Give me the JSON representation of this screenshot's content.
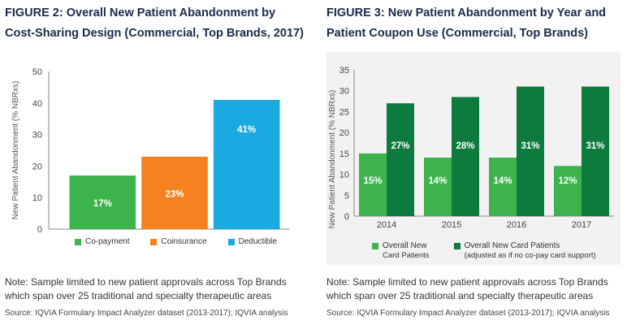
{
  "figures": [
    {
      "title": "FIGURE 2: Overall New Patient Abandonment by Cost-Sharing Design (Commercial, Top Brands, 2017)",
      "note": "Note: Sample limited to new patient approvals across Top Brands which span over 25 traditional and specialty therapeutic areas",
      "source": "Source: IQVIA Formulary Impact Analyzer dataset (2013-2017); IQVIA analysis"
    },
    {
      "title": "FIGURE 3: New Patient Abandonment by Year and Patient Coupon Use (Commercial, Top Brands)",
      "note": "Note: Sample limited to new patient approvals across Top Brands which span over 25 traditional and specialty therapeutic areas",
      "source": "Source: IQVIA Formulary Impact Analyzer dataset (2013-2017); IQVIA analysis"
    }
  ],
  "chart_data": [
    {
      "type": "bar",
      "title": "FIGURE 2: Overall New Patient Abandonment by Cost-Sharing Design (Commercial, Top Brands, 2017)",
      "ylabel": "New Patient Abandonment (% NBRxs)",
      "xlabel": "",
      "ylim": [
        0,
        50
      ],
      "yticks": [
        0,
        10,
        20,
        30,
        40,
        50
      ],
      "categories": [
        "Co-payment",
        "Coinsurance",
        "Deductible"
      ],
      "values": [
        17,
        23,
        41
      ],
      "data_labels": [
        "17%",
        "23%",
        "41%"
      ],
      "colors": [
        "#3cb44b",
        "#f5821f",
        "#1aa9e0"
      ],
      "legend": [
        "Co-payment",
        "Coinsurance",
        "Deductible"
      ],
      "legend_position": "bottom",
      "show_x_tick_labels": false,
      "grid": false
    },
    {
      "type": "bar",
      "title": "FIGURE 3: New Patient Abandonment by Year and Patient Coupon Use (Commercial, Top Brands)",
      "ylabel": "New Patient Abandonment (% NBRxs)",
      "xlabel": "",
      "ylim": [
        0,
        35
      ],
      "yticks": [
        0,
        5,
        10,
        15,
        20,
        25,
        30,
        35
      ],
      "categories": [
        "2014",
        "2015",
        "2016",
        "2017"
      ],
      "series": [
        {
          "name": "Overall New Card Patients",
          "values": [
            15,
            14,
            14,
            12
          ],
          "data_labels": [
            "15%",
            "14%",
            "14%",
            "12%"
          ],
          "color": "#3cb44b"
        },
        {
          "name": "Overall New Card Patients (adjusted as if no co-pay card support)",
          "values": [
            27,
            28.5,
            31,
            31
          ],
          "data_labels": [
            "27%",
            "28%",
            "31%",
            "31%"
          ],
          "color": "#0d7a3e"
        }
      ],
      "legend": [
        {
          "line1": "Overall New",
          "line2": "Card Patients"
        },
        {
          "line1": "Overall New Card Patients",
          "line2": "(adjusted as if no co-pay card support)"
        }
      ],
      "legend_position": "bottom",
      "background": "#f2f2f2",
      "grid": false
    }
  ]
}
